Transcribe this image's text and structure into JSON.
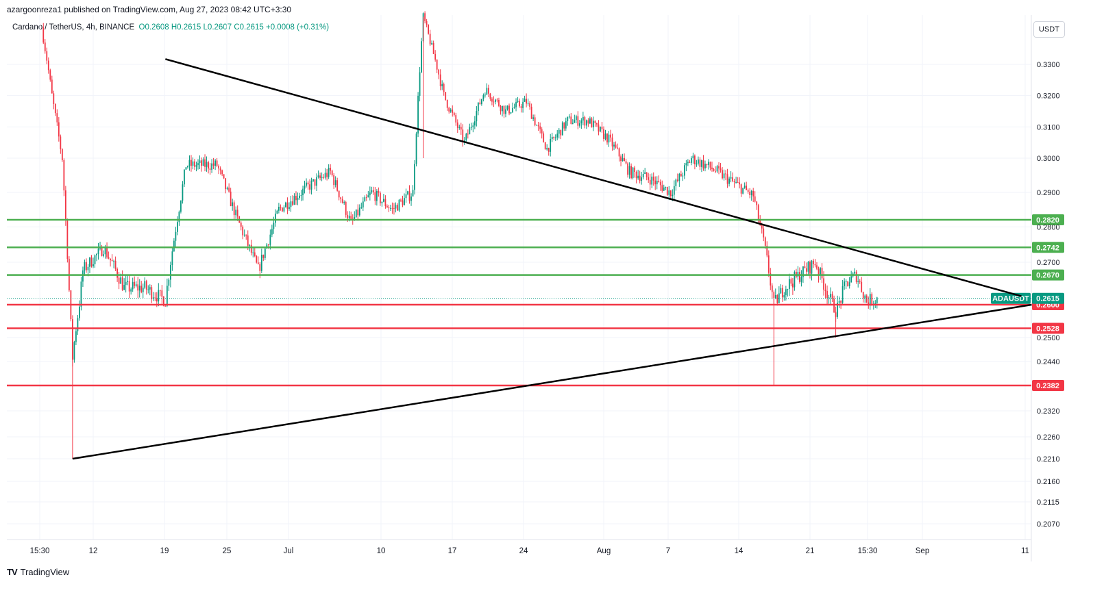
{
  "header": {
    "published": "azargoonreza1 published on TradingView.com, Aug 27, 2023 08:42 UTC+3:30",
    "symbol": "Cardano / TetherUS, 4h, BINANCE",
    "open": "O0.2608",
    "high": "H0.2615",
    "low": "L0.2607",
    "close": "C0.2615",
    "change": "+0.0008 (+0.31%)"
  },
  "currency": "USDT",
  "footer": {
    "brand": "TradingView",
    "logo": "TV"
  },
  "colors": {
    "up": "#089981",
    "down": "#f23645",
    "support": "#f23645",
    "resistance": "#4caf50",
    "trendline": "#000000",
    "grid": "#f0f3fa"
  },
  "chart_data": {
    "type": "candlestick",
    "symbol": "ADAUSDT",
    "timeframe": "4h",
    "y_ticks": [
      "0.3300",
      "0.3200",
      "0.3100",
      "0.3000",
      "0.2900",
      "0.2800",
      "0.2700",
      "0.2500",
      "0.2440",
      "0.2320",
      "0.2260",
      "0.2210",
      "0.2160",
      "0.2115",
      "0.2070"
    ],
    "x_ticks": [
      "15:30",
      "12",
      "19",
      "25",
      "Jul",
      "10",
      "17",
      "24",
      "Aug",
      "7",
      "14",
      "21",
      "15:30",
      "Sep",
      "11"
    ],
    "last_price": {
      "label": "ADAUSDT",
      "value": "0.2615"
    },
    "resistance_levels": [
      "0.2820",
      "0.2742",
      "0.2670"
    ],
    "support_levels": [
      "0.2600",
      "0.2528",
      "0.2382"
    ],
    "trendlines": [
      {
        "name": "descending",
        "from": [
          "Jun 19",
          0.332
        ],
        "to": [
          "Sep 10",
          0.262
        ]
      },
      {
        "name": "ascending",
        "from": [
          "Jun 10",
          0.221
        ],
        "to": [
          "Sep 11",
          0.26
        ]
      }
    ],
    "price_path": [
      [
        "Jun 7",
        0.344
      ],
      [
        "Jun 8",
        0.32
      ],
      [
        "Jun 9",
        0.3
      ],
      [
        "Jun 10",
        0.245
      ],
      [
        "Jun 11",
        0.268
      ],
      [
        "Jun 13",
        0.274
      ],
      [
        "Jun 15",
        0.264
      ],
      [
        "Jun 17",
        0.264
      ],
      [
        "Jun 19",
        0.261
      ],
      [
        "Jun 21",
        0.298
      ],
      [
        "Jun 24",
        0.298
      ],
      [
        "Jun 26",
        0.282
      ],
      [
        "Jun 28",
        0.268
      ],
      [
        "Jun 30",
        0.285
      ],
      [
        "Jul 3",
        0.292
      ],
      [
        "Jul 5",
        0.296
      ],
      [
        "Jul 7",
        0.281
      ],
      [
        "Jul 9",
        0.29
      ],
      [
        "Jul 11",
        0.285
      ],
      [
        "Jul 13",
        0.29
      ],
      [
        "Jul 14",
        0.348
      ],
      [
        "Jul 16",
        0.32
      ],
      [
        "Jul 18",
        0.305
      ],
      [
        "Jul 20",
        0.322
      ],
      [
        "Jul 22",
        0.315
      ],
      [
        "Jul 24",
        0.318
      ],
      [
        "Jul 26",
        0.303
      ],
      [
        "Jul 28",
        0.312
      ],
      [
        "Jul 30",
        0.312
      ],
      [
        "Aug 1",
        0.306
      ],
      [
        "Aug 3",
        0.296
      ],
      [
        "Aug 5",
        0.294
      ],
      [
        "Aug 7",
        0.29
      ],
      [
        "Aug 9",
        0.3
      ],
      [
        "Aug 11",
        0.297
      ],
      [
        "Aug 13",
        0.293
      ],
      [
        "Aug 15",
        0.289
      ],
      [
        "Aug 16",
        0.276
      ],
      [
        "Aug 17",
        0.26
      ],
      [
        "Aug 18",
        0.264
      ],
      [
        "Aug 20",
        0.268
      ],
      [
        "Aug 21",
        0.27
      ],
      [
        "Aug 23",
        0.258
      ],
      [
        "Aug 24",
        0.265
      ],
      [
        "Aug 25",
        0.267
      ],
      [
        "Aug 26",
        0.2608
      ],
      [
        "Aug 27",
        0.2615
      ]
    ]
  }
}
